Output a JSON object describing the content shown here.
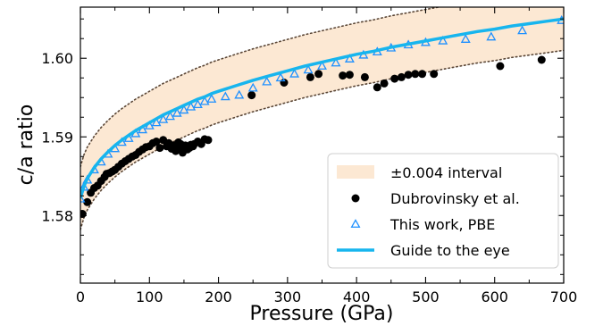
{
  "chart_data": {
    "type": "scatter",
    "xlabel": "Pressure (GPa)",
    "ylabel": "c/a ratio",
    "xlim": [
      0,
      700
    ],
    "ylim": [
      1.5714,
      1.6065
    ],
    "x_ticks": [
      0,
      100,
      200,
      300,
      400,
      500,
      600,
      700
    ],
    "x_tick_labels": [
      "0",
      "100",
      "200",
      "300",
      "400",
      "500",
      "600",
      "700"
    ],
    "y_ticks": [
      1.58,
      1.59,
      1.6
    ],
    "y_tick_labels": [
      "1.58",
      "1.59",
      "1.60"
    ],
    "grid": false,
    "legend_position": "lower-right",
    "legend": [
      {
        "label": "±0.004 interval",
        "kind": "band"
      },
      {
        "label": "Dubrovinsky et al.",
        "kind": "dot"
      },
      {
        "label": "This work, PBE",
        "kind": "triangle"
      },
      {
        "label": "Guide to the eye",
        "kind": "line"
      }
    ],
    "colors": {
      "band": "#fce8d3",
      "band_edge": "#5a4636",
      "dots": "#000000",
      "triangles": "#1e90ff",
      "guide": "#17b5ee"
    },
    "guide_curve": {
      "x": [
        0,
        5,
        10,
        20,
        30,
        40,
        50,
        60,
        70,
        80,
        90,
        100,
        110,
        120,
        130,
        140,
        150,
        160,
        170,
        180,
        190,
        200,
        225,
        250,
        275,
        300,
        325,
        350,
        375,
        400,
        425,
        450,
        475,
        500,
        525,
        550,
        575,
        600,
        625,
        650,
        675,
        700
      ],
      "y": [
        1.5822,
        1.5837,
        1.5847,
        1.5861,
        1.5872,
        1.5881,
        1.5889,
        1.5896,
        1.5902,
        1.5908,
        1.5913,
        1.5918,
        1.5923,
        1.5928,
        1.5932,
        1.5936,
        1.594,
        1.5944,
        1.5948,
        1.5951,
        1.5955,
        1.5958,
        1.5965,
        1.5972,
        1.5978,
        1.5984,
        1.599,
        1.5995,
        1.6,
        1.6005,
        1.6009,
        1.6014,
        1.6018,
        1.6022,
        1.6026,
        1.603,
        1.6034,
        1.6037,
        1.6041,
        1.6044,
        1.6047,
        1.605
      ]
    },
    "series": [
      {
        "name": "Dubrovinsky et al.",
        "marker": "dot",
        "points": [
          [
            3,
            1.5802
          ],
          [
            10,
            1.5817
          ],
          [
            15,
            1.5829
          ],
          [
            20,
            1.5835
          ],
          [
            25,
            1.5838
          ],
          [
            30,
            1.5844
          ],
          [
            35,
            1.5849
          ],
          [
            38,
            1.5853
          ],
          [
            42,
            1.5854
          ],
          [
            46,
            1.5856
          ],
          [
            50,
            1.5858
          ],
          [
            55,
            1.5862
          ],
          [
            60,
            1.5866
          ],
          [
            65,
            1.5869
          ],
          [
            70,
            1.5872
          ],
          [
            75,
            1.5875
          ],
          [
            80,
            1.5877
          ],
          [
            85,
            1.5881
          ],
          [
            90,
            1.5884
          ],
          [
            95,
            1.5887
          ],
          [
            100,
            1.5888
          ],
          [
            105,
            1.5892
          ],
          [
            110,
            1.5894
          ],
          [
            115,
            1.5886
          ],
          [
            120,
            1.5896
          ],
          [
            125,
            1.5888
          ],
          [
            128,
            1.5892
          ],
          [
            132,
            1.5885
          ],
          [
            135,
            1.5889
          ],
          [
            138,
            1.5882
          ],
          [
            140,
            1.5886
          ],
          [
            142,
            1.5893
          ],
          [
            145,
            1.5891
          ],
          [
            148,
            1.588
          ],
          [
            150,
            1.5885
          ],
          [
            152,
            1.5889
          ],
          [
            155,
            1.5884
          ],
          [
            158,
            1.5886
          ],
          [
            160,
            1.589
          ],
          [
            163,
            1.5888
          ],
          [
            165,
            1.5891
          ],
          [
            170,
            1.5894
          ],
          [
            175,
            1.5891
          ],
          [
            180,
            1.5897
          ],
          [
            185,
            1.5896
          ],
          [
            248,
            1.5953
          ],
          [
            295,
            1.5969
          ],
          [
            333,
            1.5976
          ],
          [
            345,
            1.598
          ],
          [
            380,
            1.5978
          ],
          [
            390,
            1.5979
          ],
          [
            412,
            1.5976
          ],
          [
            430,
            1.5963
          ],
          [
            440,
            1.5968
          ],
          [
            455,
            1.5974
          ],
          [
            465,
            1.5976
          ],
          [
            475,
            1.5979
          ],
          [
            485,
            1.598
          ],
          [
            495,
            1.598
          ],
          [
            512,
            1.598
          ],
          [
            608,
            1.599
          ],
          [
            668,
            1.5998
          ]
        ]
      },
      {
        "name": "This work, PBE",
        "marker": "triangle",
        "points": [
          [
            0,
            1.5821
          ],
          [
            5,
            1.5836
          ],
          [
            10,
            1.5845
          ],
          [
            20,
            1.5858
          ],
          [
            30,
            1.5868
          ],
          [
            40,
            1.5878
          ],
          [
            50,
            1.5885
          ],
          [
            60,
            1.5893
          ],
          [
            70,
            1.5898
          ],
          [
            80,
            1.5904
          ],
          [
            90,
            1.5909
          ],
          [
            100,
            1.5914
          ],
          [
            110,
            1.5918
          ],
          [
            120,
            1.5922
          ],
          [
            130,
            1.5926
          ],
          [
            140,
            1.593
          ],
          [
            150,
            1.5934
          ],
          [
            160,
            1.5938
          ],
          [
            170,
            1.5941
          ],
          [
            180,
            1.5945
          ],
          [
            190,
            1.5948
          ],
          [
            210,
            1.5951
          ],
          [
            230,
            1.5953
          ],
          [
            250,
            1.5962
          ],
          [
            270,
            1.597
          ],
          [
            290,
            1.5975
          ],
          [
            310,
            1.598
          ],
          [
            330,
            1.5985
          ],
          [
            350,
            1.599
          ],
          [
            370,
            1.5994
          ],
          [
            390,
            1.5999
          ],
          [
            410,
            1.6004
          ],
          [
            430,
            1.6008
          ],
          [
            450,
            1.6013
          ],
          [
            475,
            1.6017
          ],
          [
            500,
            1.602
          ],
          [
            525,
            1.6022
          ],
          [
            558,
            1.6024
          ],
          [
            595,
            1.6027
          ],
          [
            640,
            1.6035
          ],
          [
            697,
            1.6048
          ]
        ]
      }
    ],
    "band": {
      "label": "±0.004 interval",
      "half_width": 0.004
    }
  }
}
